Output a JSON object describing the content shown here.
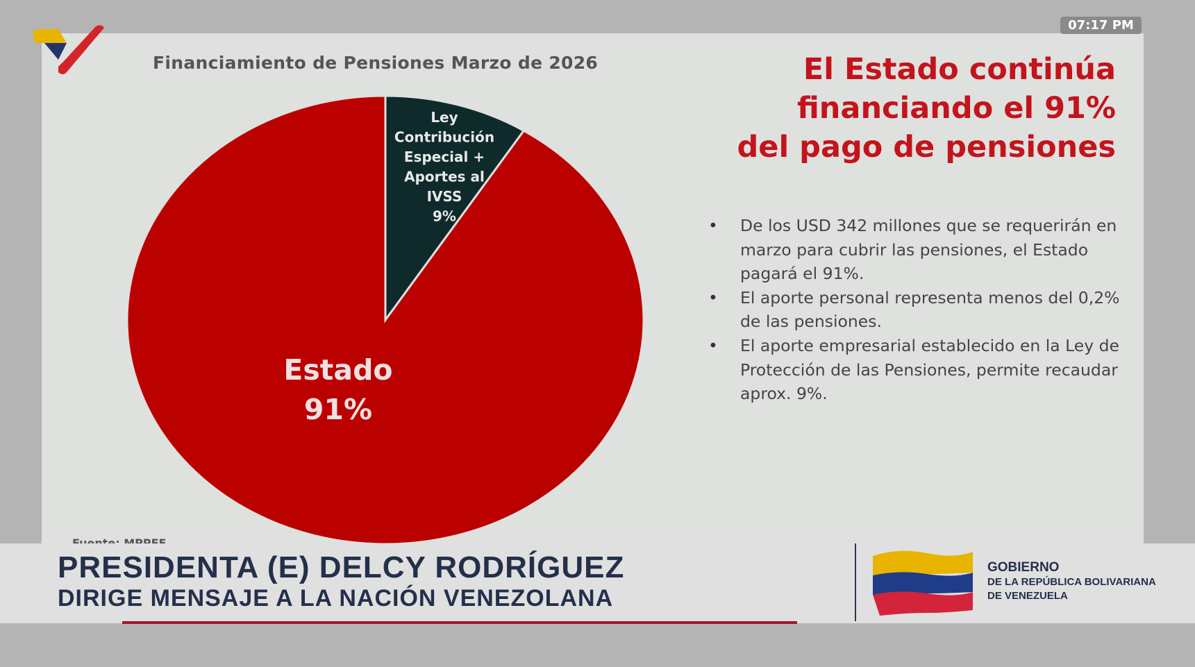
{
  "clock": "07:17  PM",
  "slide": {
    "headline": [
      "El Estado continúa",
      "financiando el 91%",
      "del pago de pensiones"
    ],
    "bullets": [
      "De los USD 342 millones que se requerirán en marzo para cubrir las pensiones, el Estado pagará el 91%.",
      "El aporte personal representa menos del 0,2% de las pensiones.",
      "El aporte empresarial establecido en la Ley de Protección de las Pensiones, permite recaudar aprox. 9%."
    ],
    "source": "Fuente: MPPEF"
  },
  "chart_data": {
    "type": "pie",
    "title": "Financiamiento de Pensiones Marzo de 2026",
    "slices": [
      {
        "label": [
          "Ley",
          "Contribución",
          "Especial +",
          "Aportes al",
          "IVSS"
        ],
        "value": 9,
        "value_label": "9%",
        "color": "#0f2a2a"
      },
      {
        "label": [
          "Estado"
        ],
        "value": 91,
        "value_label": "91%",
        "color": "#bb0000"
      }
    ],
    "legend": "none"
  },
  "banner": {
    "name": "PRESIDENTA (E) DELCY RODRÍGUEZ",
    "subtitle": "DIRIGE MENSAJE A LA NACIÓN VENEZOLANA",
    "gov_line1": "GOBIERNO",
    "gov_line2": "DE LA REPÚBLICA BOLIVARIANA",
    "gov_line3": "DE VENEZUELA"
  }
}
